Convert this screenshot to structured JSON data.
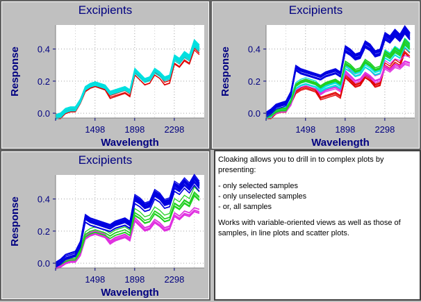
{
  "colors": {
    "title": "#000080",
    "axis_label": "#000080",
    "tick_label": "#000080",
    "series_red": "#e00000",
    "series_cyan": "#00e0e0",
    "series_blue": "#0000e0",
    "series_green": "#20d020",
    "series_magenta": "#e030e0"
  },
  "panels": [
    {
      "title": "Excipients",
      "x_label": "Wavelength",
      "y_label": "Response",
      "x_ticks": [
        "1498",
        "1898",
        "2298"
      ],
      "y_ticks": [
        "0.0",
        "0.2",
        "0.4"
      ]
    },
    {
      "title": "Excipients",
      "x_label": "Wavelength",
      "y_label": "Response",
      "x_ticks": [
        "1498",
        "1898",
        "2298"
      ],
      "y_ticks": [
        "0.0",
        "0.2",
        "0.4"
      ]
    },
    {
      "title": "Excipients",
      "x_label": "Wavelength",
      "y_label": "Response",
      "x_ticks": [
        "1498",
        "1898",
        "2298"
      ],
      "y_ticks": [
        "0.0",
        "0.2",
        "0.4"
      ]
    }
  ],
  "info": {
    "intro": "Cloaking allows you to drill in to complex plots by presenting:",
    "bullets": [
      "- only selected samples",
      "- only unselected samples",
      "- or, all samples"
    ],
    "outro": "Works with variable-oriented views as well as those of samples, in line plots and scatter plots."
  },
  "chart_data": [
    {
      "type": "line",
      "title": "Excipients",
      "xlabel": "Wavelength",
      "ylabel": "Response",
      "xlim": [
        1100,
        2600
      ],
      "ylim": [
        -0.03,
        0.55
      ],
      "x": [
        1100,
        1150,
        1200,
        1250,
        1300,
        1350,
        1400,
        1450,
        1500,
        1550,
        1600,
        1650,
        1700,
        1750,
        1800,
        1850,
        1900,
        1950,
        2000,
        2050,
        2100,
        2150,
        2200,
        2250,
        2300,
        2350,
        2400,
        2450,
        2500,
        2550
      ],
      "series": [
        {
          "name": "red",
          "color": "#e00000",
          "count": 4,
          "values": [
            -0.02,
            -0.02,
            0.01,
            0.02,
            0.02,
            0.07,
            0.14,
            0.16,
            0.17,
            0.16,
            0.15,
            0.1,
            0.11,
            0.12,
            0.13,
            0.11,
            0.24,
            0.21,
            0.18,
            0.19,
            0.24,
            0.22,
            0.18,
            0.19,
            0.31,
            0.29,
            0.33,
            0.31,
            0.4,
            0.37
          ]
        },
        {
          "name": "cyan",
          "color": "#00e0e0",
          "count": 14,
          "values": [
            -0.02,
            -0.01,
            0.02,
            0.03,
            0.03,
            0.08,
            0.16,
            0.18,
            0.19,
            0.18,
            0.17,
            0.13,
            0.14,
            0.15,
            0.16,
            0.14,
            0.27,
            0.24,
            0.21,
            0.22,
            0.27,
            0.25,
            0.22,
            0.23,
            0.35,
            0.33,
            0.37,
            0.35,
            0.44,
            0.41
          ]
        }
      ]
    },
    {
      "type": "line",
      "title": "Excipients",
      "xlabel": "Wavelength",
      "ylabel": "Response",
      "xlim": [
        1100,
        2600
      ],
      "ylim": [
        -0.03,
        0.55
      ],
      "x": [
        1100,
        1150,
        1200,
        1250,
        1300,
        1350,
        1400,
        1450,
        1500,
        1550,
        1600,
        1650,
        1700,
        1750,
        1800,
        1850,
        1900,
        1950,
        2000,
        2050,
        2100,
        2150,
        2200,
        2250,
        2300,
        2350,
        2400,
        2450,
        2500,
        2550
      ],
      "series": [
        {
          "name": "red",
          "color": "#e00000",
          "count": 4,
          "values": [
            -0.02,
            -0.02,
            0.01,
            0.02,
            0.02,
            0.07,
            0.14,
            0.16,
            0.17,
            0.16,
            0.15,
            0.1,
            0.11,
            0.12,
            0.13,
            0.11,
            0.24,
            0.21,
            0.18,
            0.19,
            0.24,
            0.22,
            0.18,
            0.19,
            0.31,
            0.29,
            0.33,
            0.31,
            0.4,
            0.37
          ]
        },
        {
          "name": "magenta",
          "color": "#e030e0",
          "count": 6,
          "values": [
            -0.02,
            -0.01,
            0.01,
            0.02,
            0.02,
            0.06,
            0.16,
            0.18,
            0.19,
            0.18,
            0.17,
            0.13,
            0.15,
            0.16,
            0.17,
            0.15,
            0.27,
            0.24,
            0.21,
            0.22,
            0.26,
            0.24,
            0.21,
            0.22,
            0.3,
            0.28,
            0.31,
            0.3,
            0.33,
            0.32
          ]
        },
        {
          "name": "cyan",
          "color": "#00e0e0",
          "count": 8,
          "values": [
            -0.02,
            -0.01,
            0.02,
            0.03,
            0.03,
            0.08,
            0.17,
            0.19,
            0.2,
            0.19,
            0.18,
            0.15,
            0.17,
            0.18,
            0.19,
            0.17,
            0.3,
            0.28,
            0.25,
            0.26,
            0.31,
            0.29,
            0.26,
            0.27,
            0.37,
            0.35,
            0.39,
            0.37,
            0.44,
            0.41
          ]
        },
        {
          "name": "green",
          "color": "#20d020",
          "count": 6,
          "values": [
            -0.01,
            0.0,
            0.02,
            0.03,
            0.03,
            0.08,
            0.18,
            0.2,
            0.21,
            0.2,
            0.19,
            0.17,
            0.19,
            0.2,
            0.21,
            0.19,
            0.32,
            0.3,
            0.27,
            0.28,
            0.33,
            0.31,
            0.28,
            0.29,
            0.38,
            0.36,
            0.4,
            0.38,
            0.45,
            0.42
          ]
        },
        {
          "name": "blue",
          "color": "#0000e0",
          "count": 16,
          "values": [
            -0.01,
            0.01,
            0.04,
            0.05,
            0.06,
            0.12,
            0.28,
            0.26,
            0.25,
            0.24,
            0.23,
            0.22,
            0.24,
            0.25,
            0.26,
            0.24,
            0.4,
            0.38,
            0.35,
            0.36,
            0.43,
            0.41,
            0.37,
            0.38,
            0.48,
            0.46,
            0.5,
            0.47,
            0.52,
            0.48
          ]
        }
      ]
    },
    {
      "type": "line",
      "title": "Excipients",
      "xlabel": "Wavelength",
      "ylabel": "Response",
      "xlim": [
        1100,
        2600
      ],
      "ylim": [
        -0.03,
        0.55
      ],
      "x": [
        1100,
        1150,
        1200,
        1250,
        1300,
        1350,
        1400,
        1450,
        1500,
        1550,
        1600,
        1650,
        1700,
        1750,
        1800,
        1850,
        1900,
        1950,
        2000,
        2050,
        2100,
        2150,
        2200,
        2250,
        2300,
        2350,
        2400,
        2450,
        2500,
        2550
      ],
      "series": [
        {
          "name": "magenta",
          "color": "#e030e0",
          "count": 8,
          "values": [
            -0.02,
            -0.01,
            0.01,
            0.02,
            0.02,
            0.06,
            0.16,
            0.18,
            0.19,
            0.18,
            0.17,
            0.13,
            0.15,
            0.16,
            0.17,
            0.15,
            0.27,
            0.24,
            0.21,
            0.22,
            0.26,
            0.24,
            0.21,
            0.22,
            0.3,
            0.28,
            0.31,
            0.3,
            0.33,
            0.32
          ]
        },
        {
          "name": "green",
          "color": "#20d020",
          "count": 6,
          "values": [
            -0.01,
            0.0,
            0.02,
            0.03,
            0.03,
            0.08,
            0.18,
            0.2,
            0.21,
            0.2,
            0.19,
            0.17,
            0.19,
            0.2,
            0.21,
            0.19,
            0.32,
            0.3,
            0.27,
            0.28,
            0.33,
            0.31,
            0.28,
            0.29,
            0.38,
            0.36,
            0.4,
            0.38,
            0.45,
            0.42
          ]
        },
        {
          "name": "blue",
          "color": "#0000e0",
          "count": 16,
          "values": [
            -0.01,
            0.01,
            0.04,
            0.05,
            0.06,
            0.12,
            0.28,
            0.26,
            0.25,
            0.24,
            0.23,
            0.22,
            0.24,
            0.25,
            0.26,
            0.24,
            0.4,
            0.38,
            0.35,
            0.36,
            0.43,
            0.41,
            0.37,
            0.38,
            0.48,
            0.46,
            0.5,
            0.47,
            0.52,
            0.48
          ]
        }
      ]
    }
  ]
}
